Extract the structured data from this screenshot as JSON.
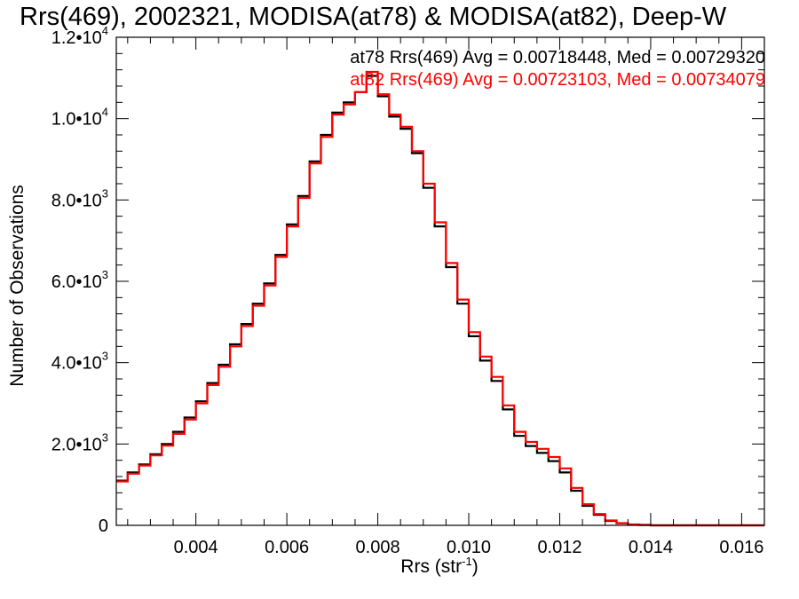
{
  "chart_data": {
    "type": "line",
    "title": "Rrs(469), 2002321, MODISA(at78) & MODISA(at82), Deep-W",
    "xlabel": "Rrs (str",
    "xlabel_sup": "-1",
    "xlabel_end": ")",
    "ylabel": "Number of Observations",
    "xlim": [
      0.00225,
      0.0165
    ],
    "ylim": [
      0,
      12000
    ],
    "x_ticks": [
      {
        "value": 0.004,
        "label": "0.004"
      },
      {
        "value": 0.006,
        "label": "0.006"
      },
      {
        "value": 0.008,
        "label": "0.008"
      },
      {
        "value": 0.01,
        "label": "0.010"
      },
      {
        "value": 0.012,
        "label": "0.012"
      },
      {
        "value": 0.014,
        "label": "0.014"
      },
      {
        "value": 0.016,
        "label": "0.016"
      }
    ],
    "y_ticks": [
      {
        "value": 0,
        "mant": "0",
        "exp": ""
      },
      {
        "value": 2000,
        "mant": "2.0•10",
        "exp": "3"
      },
      {
        "value": 4000,
        "mant": "4.0•10",
        "exp": "3"
      },
      {
        "value": 6000,
        "mant": "6.0•10",
        "exp": "3"
      },
      {
        "value": 8000,
        "mant": "8.0•10",
        "exp": "3"
      },
      {
        "value": 10000,
        "mant": "1.0•10",
        "exp": "4"
      },
      {
        "value": 12000,
        "mant": "1.2•10",
        "exp": "4"
      }
    ],
    "series": [
      {
        "name": "at78",
        "color": "#000000",
        "legend": "at78 Rrs(469) Avg = 0.00718448, Med = 0.00729320",
        "x": [
          0.00225,
          0.0025,
          0.00275,
          0.003,
          0.00325,
          0.0035,
          0.00375,
          0.004,
          0.00425,
          0.0045,
          0.00475,
          0.005,
          0.00525,
          0.0055,
          0.00575,
          0.006,
          0.00625,
          0.0065,
          0.00675,
          0.007,
          0.00725,
          0.0075,
          0.00775,
          0.008,
          0.00825,
          0.0085,
          0.00875,
          0.009,
          0.00925,
          0.0095,
          0.00975,
          0.01,
          0.01025,
          0.0105,
          0.01075,
          0.011,
          0.01125,
          0.0115,
          0.01175,
          0.012,
          0.01225,
          0.0125,
          0.01275,
          0.013,
          0.01325,
          0.0135,
          0.01375,
          0.014,
          0.0145,
          0.015,
          0.0155,
          0.016,
          0.0165
        ],
        "values": [
          1100,
          1300,
          1500,
          1750,
          2000,
          2300,
          2650,
          3050,
          3500,
          3950,
          4450,
          4950,
          5450,
          5950,
          6650,
          7400,
          8100,
          8950,
          9600,
          10150,
          10400,
          10650,
          11050,
          10550,
          10050,
          9750,
          9150,
          8300,
          7350,
          6350,
          5450,
          4650,
          4050,
          3550,
          2850,
          2200,
          1950,
          1780,
          1580,
          1300,
          850,
          480,
          260,
          110,
          50,
          20,
          10,
          0,
          0,
          0,
          0,
          0,
          0
        ]
      },
      {
        "name": "at82",
        "color": "#ff0000",
        "legend": "at82 Rrs(469) Avg = 0.00723103, Med = 0.00734079",
        "x": [
          0.00225,
          0.0025,
          0.00275,
          0.003,
          0.00325,
          0.0035,
          0.00375,
          0.004,
          0.00425,
          0.0045,
          0.00475,
          0.005,
          0.00525,
          0.0055,
          0.00575,
          0.006,
          0.00625,
          0.0065,
          0.00675,
          0.007,
          0.00725,
          0.0075,
          0.00775,
          0.008,
          0.00825,
          0.0085,
          0.00875,
          0.009,
          0.00925,
          0.0095,
          0.00975,
          0.01,
          0.01025,
          0.0105,
          0.01075,
          0.011,
          0.01125,
          0.0115,
          0.01175,
          0.012,
          0.01225,
          0.0125,
          0.01275,
          0.013,
          0.01325,
          0.0135,
          0.01375,
          0.014,
          0.0145,
          0.015,
          0.0155,
          0.016,
          0.0165
        ],
        "values": [
          1080,
          1270,
          1470,
          1720,
          1960,
          2250,
          2600,
          3000,
          3450,
          3900,
          4400,
          4900,
          5400,
          5900,
          6600,
          7350,
          8050,
          8900,
          9550,
          10100,
          10350,
          10650,
          11150,
          10600,
          10100,
          9800,
          9200,
          8400,
          7450,
          6450,
          5550,
          4750,
          4150,
          3650,
          2950,
          2300,
          2050,
          1880,
          1680,
          1400,
          920,
          520,
          280,
          120,
          55,
          22,
          10,
          0,
          0,
          0,
          0,
          0,
          0
        ]
      }
    ],
    "grid": false,
    "legend_position": "top-right"
  }
}
